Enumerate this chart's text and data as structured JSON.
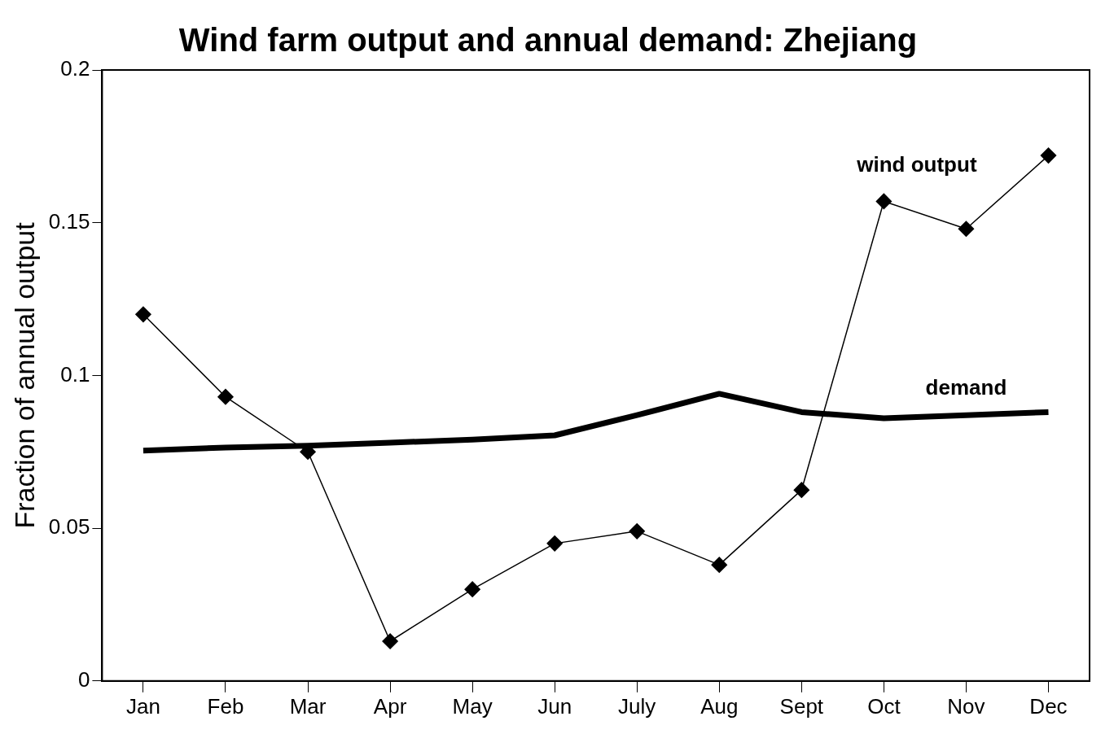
{
  "chart_data": {
    "type": "line",
    "title": "Wind farm output and annual demand: Zhejiang",
    "ylabel": "Fraction of annual output",
    "categories": [
      "Jan",
      "Feb",
      "Mar",
      "Apr",
      "May",
      "Jun",
      "July",
      "Aug",
      "Sept",
      "Oct",
      "Nov",
      "Dec"
    ],
    "series": [
      {
        "name": "wind output",
        "color": "#000000",
        "marker": "diamond",
        "values": [
          0.12,
          0.093,
          0.075,
          0.013,
          0.03,
          0.045,
          0.049,
          0.038,
          0.0625,
          0.157,
          0.148,
          0.172
        ]
      },
      {
        "name": "demand",
        "color": "#000000",
        "marker": "none",
        "values": [
          0.0754,
          0.0764,
          0.077,
          0.078,
          0.079,
          0.0804,
          0.087,
          0.094,
          0.088,
          0.086,
          0.087,
          0.088
        ]
      }
    ],
    "ylim": [
      0,
      0.2
    ],
    "yticks": [
      0,
      0.05,
      0.1,
      0.15,
      0.2
    ],
    "grid": false,
    "legend": false
  }
}
